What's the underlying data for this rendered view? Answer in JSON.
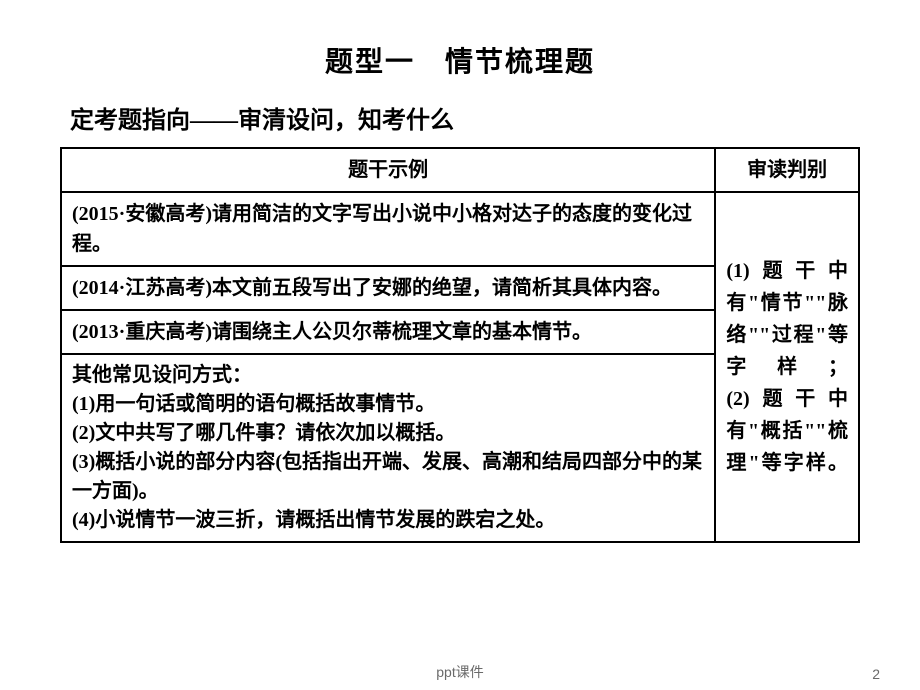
{
  "title": "题型一　情节梳理题",
  "subtitle": "定考题指向——审清设问，知考什么",
  "table": {
    "header_left": "题干示例",
    "header_right": "审读判别",
    "rows": [
      "(2015·安徽高考)请用简洁的文字写出小说中小格对达子的态度的变化过程。",
      "(2014·江苏高考)本文前五段写出了安娜的绝望，请简析其具体内容。",
      "(2013·重庆高考)请围绕主人公贝尔蒂梳理文章的基本情节。"
    ],
    "other_header": "其他常见设问方式：",
    "other_items": [
      "(1)用一句话或简明的语句概括故事情节。",
      "(2)文中共写了哪几件事？请依次加以概括。",
      "(3)概括小说的部分内容(包括指出开端、发展、高潮和结局四部分中的某一方面)。",
      "(4)小说情节一波三折，请概括出情节发展的跌宕之处。"
    ],
    "right_text": "(1)题干中有\"情节\"\"脉络\"\"过程\"等字样；\n(2)题干中有\"概括\"\"梳理\"等字样。"
  },
  "footer": "ppt课件",
  "page_num": "2",
  "colors": {
    "background": "#ffffff",
    "text": "#000000",
    "border": "#000000",
    "footer": "#6a6a6a"
  },
  "fonts": {
    "title_size": 28,
    "subtitle_size": 24,
    "cell_size": 20,
    "footer_size": 14
  }
}
